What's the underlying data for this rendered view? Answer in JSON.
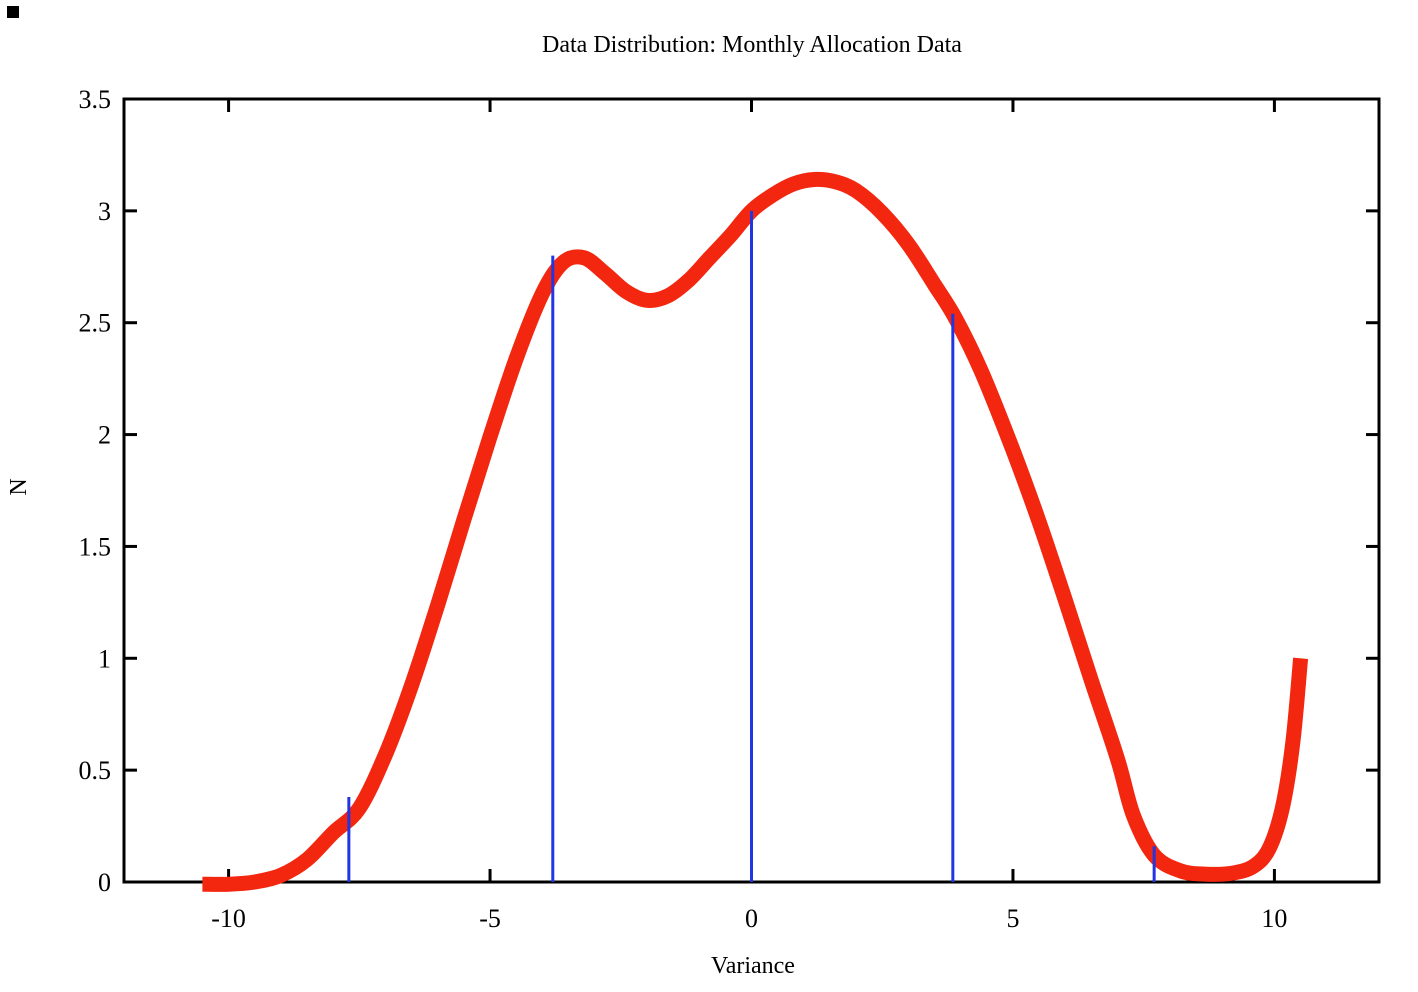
{
  "page": {
    "background": "#ffffff"
  },
  "chart_data": {
    "type": "line",
    "title": "Data Distribution: Monthly Allocation Data",
    "xlabel": "Variance",
    "ylabel": "N",
    "xlim": [
      -12,
      12
    ],
    "ylim": [
      0,
      3.5
    ],
    "x_ticks": [
      -10,
      -5,
      0,
      5,
      10
    ],
    "y_ticks": [
      0,
      0.5,
      1,
      1.5,
      2,
      2.5,
      3,
      3.5
    ],
    "grid": false,
    "legend": "none",
    "frame_style": "closed box with inward mirrored ticks",
    "series": [
      {
        "name": "smoothed distribution curve",
        "style": "thick-line",
        "color": "#f3270f",
        "line_width": 15,
        "points": [
          [
            -10.5,
            -0.01
          ],
          [
            -10.0,
            -0.01
          ],
          [
            -9.5,
            0.0
          ],
          [
            -9.0,
            0.03
          ],
          [
            -8.5,
            0.1
          ],
          [
            -8.0,
            0.22
          ],
          [
            -7.5,
            0.33
          ],
          [
            -7.0,
            0.57
          ],
          [
            -6.5,
            0.88
          ],
          [
            -6.0,
            1.24
          ],
          [
            -5.5,
            1.62
          ],
          [
            -5.0,
            1.99
          ],
          [
            -4.5,
            2.34
          ],
          [
            -4.0,
            2.63
          ],
          [
            -3.6,
            2.77
          ],
          [
            -3.2,
            2.79
          ],
          [
            -2.8,
            2.72
          ],
          [
            -2.4,
            2.64
          ],
          [
            -2.0,
            2.6
          ],
          [
            -1.6,
            2.62
          ],
          [
            -1.2,
            2.69
          ],
          [
            -0.8,
            2.79
          ],
          [
            -0.4,
            2.89
          ],
          [
            0.0,
            3.0
          ],
          [
            0.4,
            3.07
          ],
          [
            0.8,
            3.12
          ],
          [
            1.2,
            3.14
          ],
          [
            1.6,
            3.13
          ],
          [
            2.0,
            3.09
          ],
          [
            2.5,
            2.99
          ],
          [
            3.0,
            2.85
          ],
          [
            3.5,
            2.67
          ],
          [
            3.9,
            2.52
          ],
          [
            4.4,
            2.28
          ],
          [
            5.0,
            1.93
          ],
          [
            5.5,
            1.61
          ],
          [
            6.0,
            1.26
          ],
          [
            6.5,
            0.9
          ],
          [
            7.0,
            0.55
          ],
          [
            7.3,
            0.3
          ],
          [
            7.7,
            0.12
          ],
          [
            8.2,
            0.05
          ],
          [
            8.7,
            0.035
          ],
          [
            9.2,
            0.04
          ],
          [
            9.6,
            0.07
          ],
          [
            9.9,
            0.15
          ],
          [
            10.15,
            0.33
          ],
          [
            10.35,
            0.62
          ],
          [
            10.5,
            1.0
          ]
        ]
      },
      {
        "name": "data points",
        "style": "impulses",
        "color": "#2135e2",
        "line_width": 3,
        "points": [
          [
            -7.7,
            0.38
          ],
          [
            -3.8,
            2.8
          ],
          [
            0.0,
            3.0
          ],
          [
            3.85,
            2.54
          ],
          [
            7.7,
            0.16
          ]
        ]
      }
    ]
  }
}
